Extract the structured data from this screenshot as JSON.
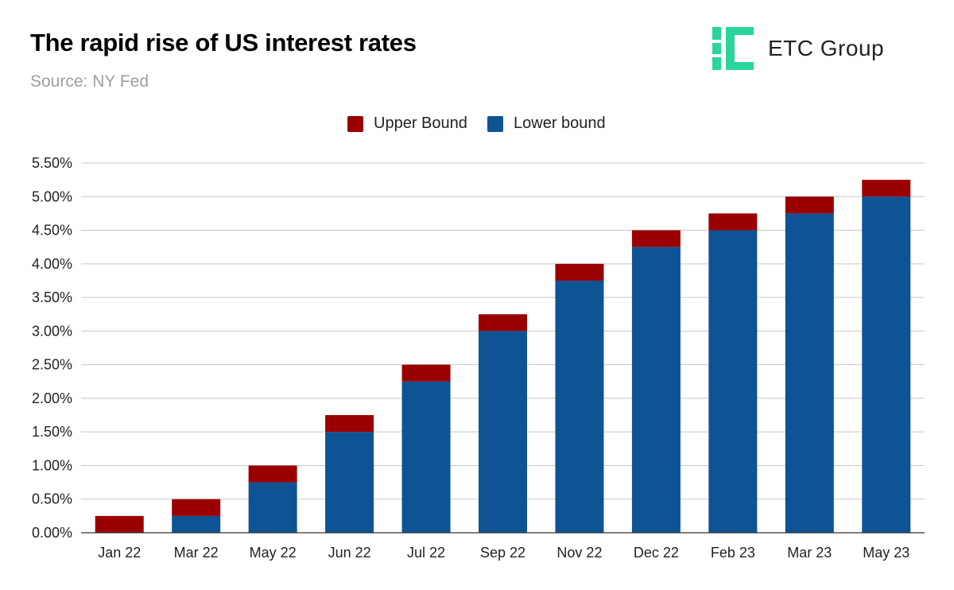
{
  "header": {
    "title": "The rapid rise of US interest rates",
    "subtitle": "Source: NY Fed"
  },
  "logo": {
    "text": "ETC Group",
    "icon": "etc-group-logo-mark",
    "color": "#2ad49a"
  },
  "legend": {
    "items": [
      {
        "label": "Upper Bound",
        "color": "#9a0000"
      },
      {
        "label": "Lower bound",
        "color": "#0e5394"
      }
    ],
    "position": "top-center"
  },
  "chart_data": {
    "type": "bar",
    "stacked": true,
    "categories": [
      "Jan 22",
      "Mar 22",
      "May 22",
      "Jun 22",
      "Jul 22",
      "Sep 22",
      "Nov 22",
      "Dec 22",
      "Feb 23",
      "Mar 23",
      "May 23"
    ],
    "series": [
      {
        "name": "Lower bound",
        "color": "#0e5394",
        "values": [
          0,
          0.25,
          0.75,
          1.5,
          2.25,
          3.0,
          3.75,
          4.25,
          4.5,
          4.75,
          5.0
        ]
      },
      {
        "name": "Upper Bound",
        "color": "#9a0000",
        "values": [
          0.25,
          0.25,
          0.25,
          0.25,
          0.25,
          0.25,
          0.25,
          0.25,
          0.25,
          0.25,
          0.25
        ]
      }
    ],
    "y_ticks": [
      "0.00%",
      "0.50%",
      "1.00%",
      "1.50%",
      "2.00%",
      "2.50%",
      "3.00%",
      "3.50%",
      "4.00%",
      "4.50%",
      "5.00%",
      "5.50%"
    ],
    "ylim": [
      0,
      5.5
    ],
    "y_unit": "%",
    "grid": true,
    "xlabel": "",
    "ylabel": ""
  }
}
